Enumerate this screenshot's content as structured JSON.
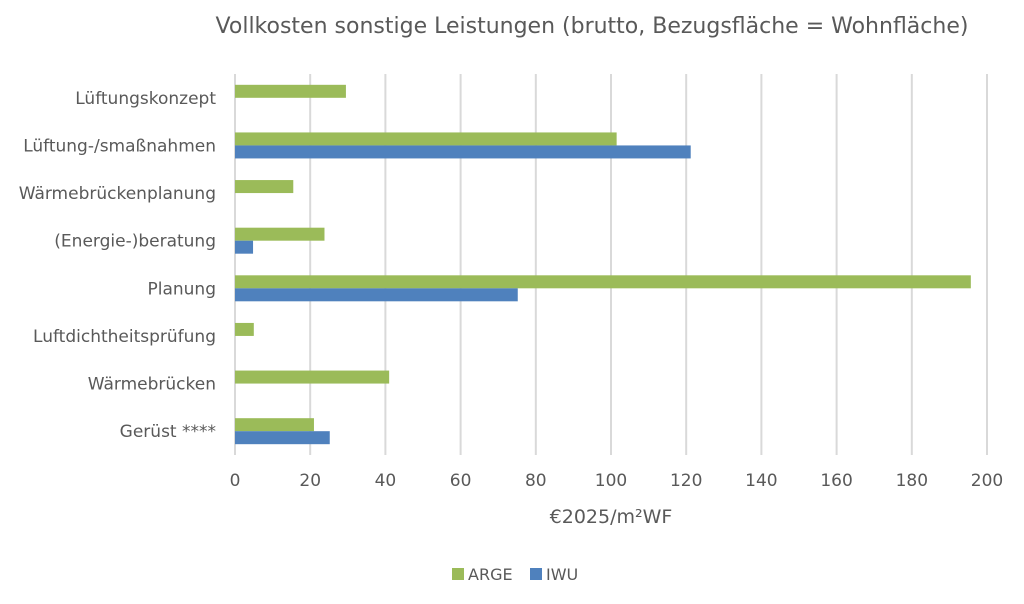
{
  "chart_data": {
    "type": "bar",
    "orientation": "horizontal",
    "title": "Vollkosten sonstige Leistungen (brutto, Bezugsfläche = Wohnfläche)",
    "xlabel": "€2025/m²WF",
    "ylabel": "",
    "xlim": [
      0,
      200
    ],
    "xticks": [
      0,
      20,
      40,
      60,
      80,
      100,
      120,
      140,
      160,
      180,
      200
    ],
    "grid": true,
    "legend_position": "bottom",
    "categories": [
      "Lüftungskonzept",
      "Lüftung-/smaßnahmen",
      "Wärmebrückenplanung",
      "(Energie-)beratung",
      "Planung",
      "Luftdichtheitsprüfung",
      "Wärmebrücken",
      "Gerüst ****"
    ],
    "series": [
      {
        "name": "ARGE",
        "color": "#9bbb59",
        "values": [
          29.5,
          101.5,
          15.5,
          23.8,
          195.7,
          5.0,
          41.0,
          21.0
        ]
      },
      {
        "name": "IWU",
        "color": "#4f81bd",
        "values": [
          null,
          121.2,
          null,
          4.8,
          75.2,
          null,
          null,
          25.2
        ]
      }
    ]
  }
}
